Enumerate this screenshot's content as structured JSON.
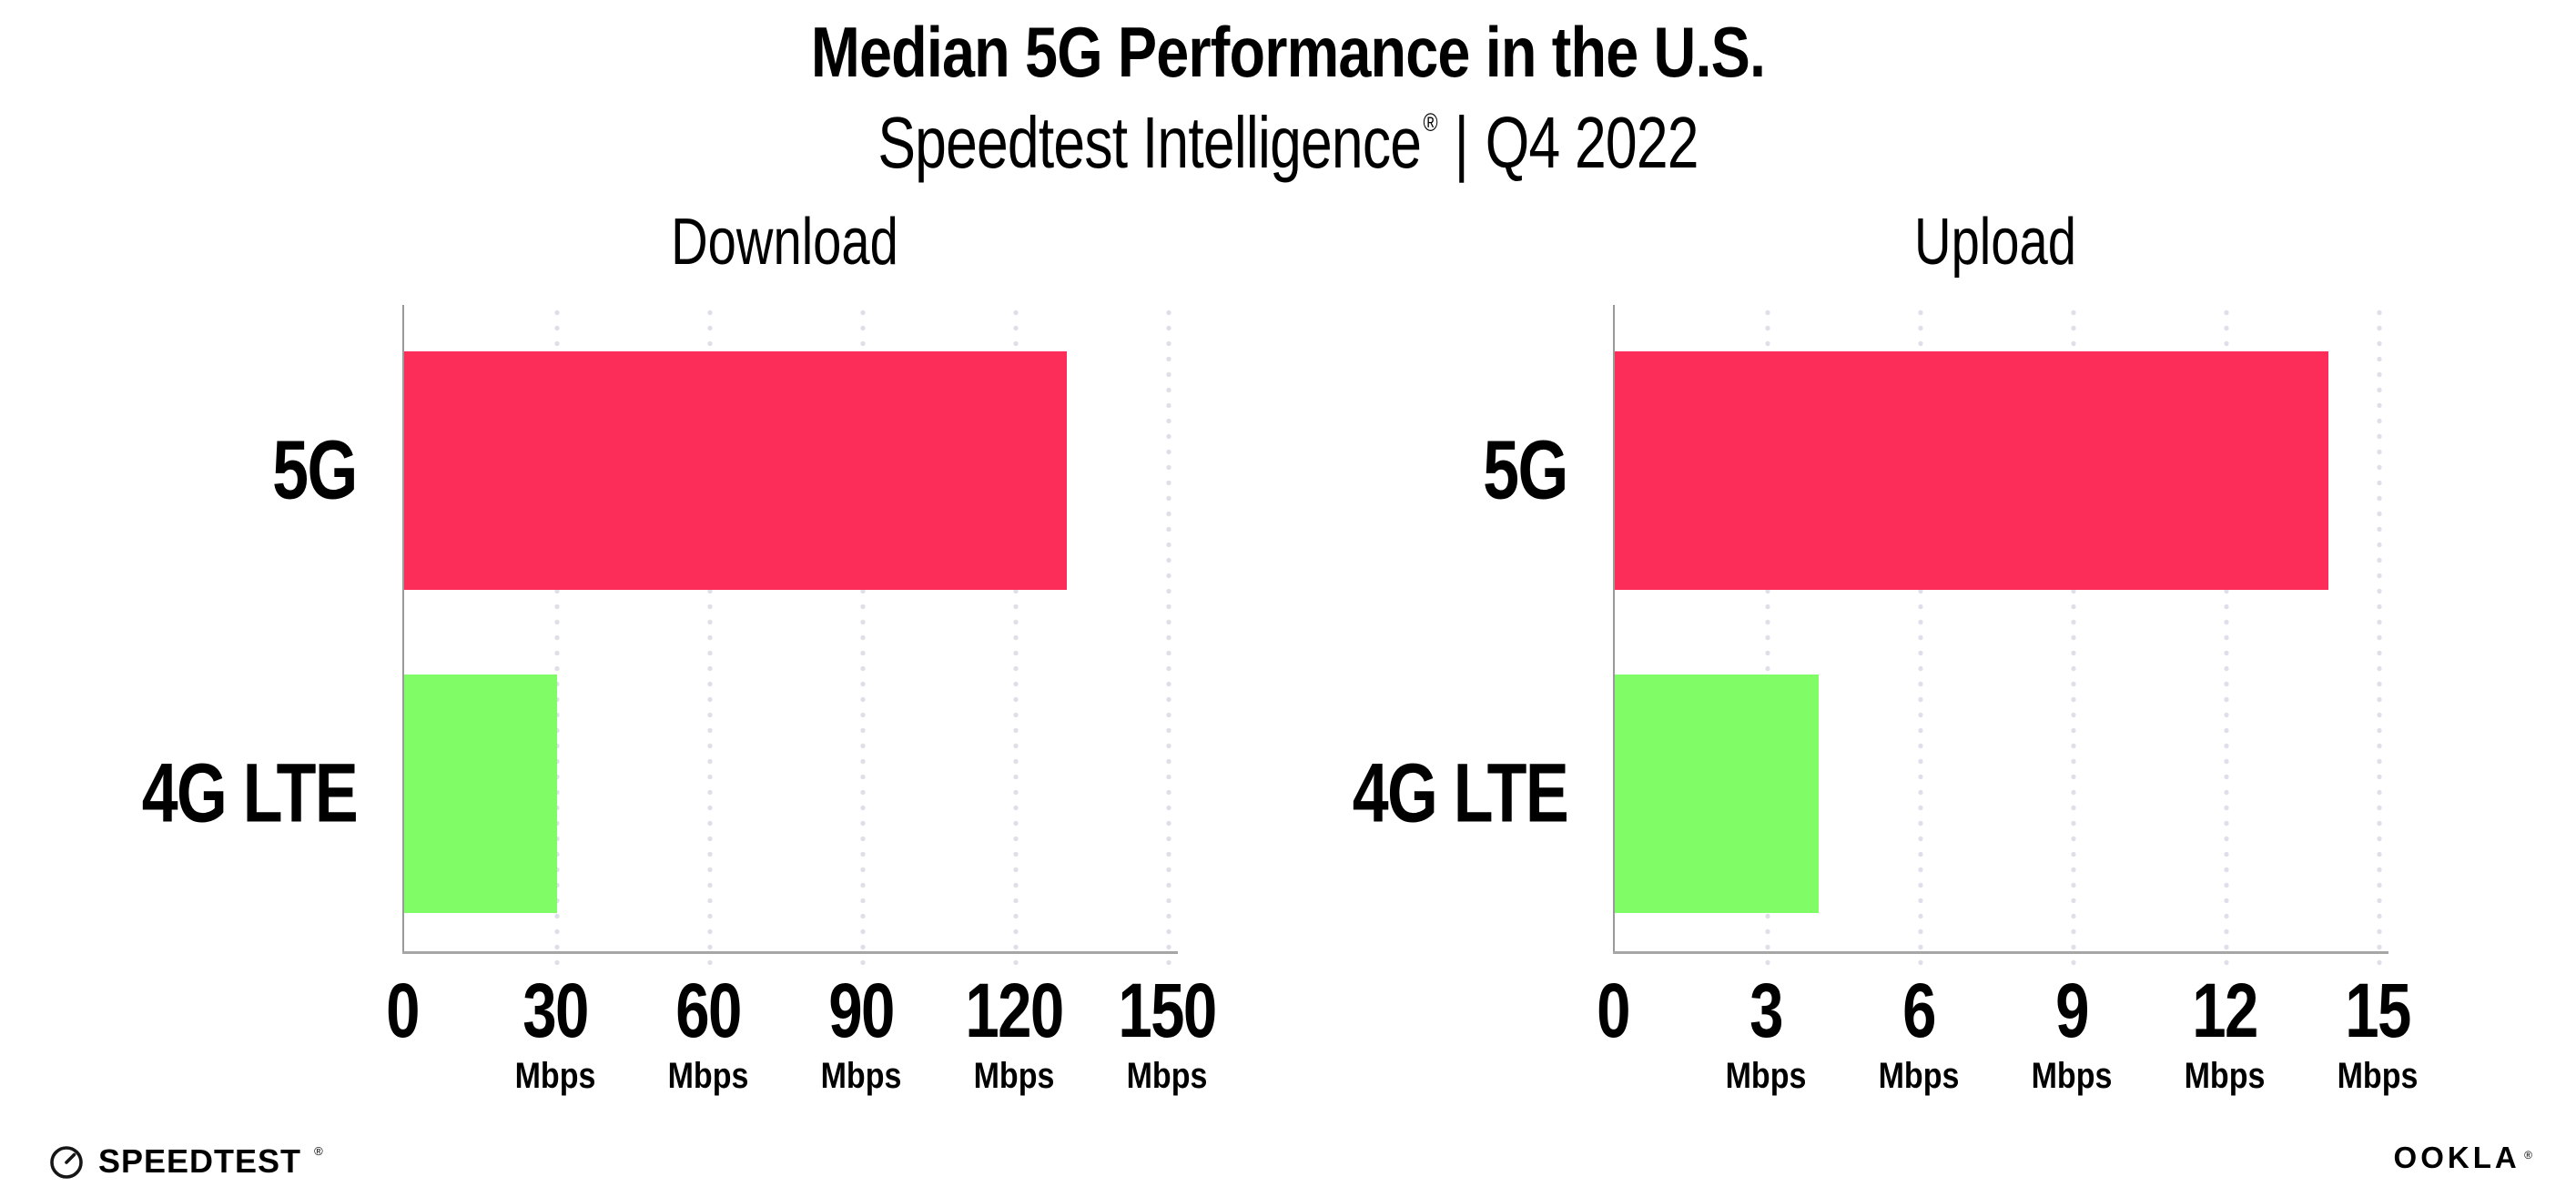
{
  "header": {
    "title": "Median 5G Performance in the U.S.",
    "subtitle_brand": "Speedtest Intelligence",
    "subtitle_reg": "®",
    "subtitle_separator": "|",
    "subtitle_period": "Q4 2022"
  },
  "chart_data": [
    {
      "type": "bar",
      "orientation": "horizontal",
      "title": "Download",
      "categories": [
        "5G",
        "4G LTE"
      ],
      "values": [
        130,
        30
      ],
      "unit": "Mbps",
      "xlabel": "",
      "ylabel": "",
      "xlim": [
        0,
        150
      ],
      "xticks": [
        0,
        30,
        60,
        90,
        120,
        150
      ],
      "bar_colors": [
        "#FD2D5A",
        "#80FC66"
      ],
      "grid": "vertical-dotted",
      "legend_position": "none"
    },
    {
      "type": "bar",
      "orientation": "horizontal",
      "title": "Upload",
      "categories": [
        "5G",
        "4G LTE"
      ],
      "values": [
        14,
        4
      ],
      "unit": "Mbps",
      "xlabel": "",
      "ylabel": "",
      "xlim": [
        0,
        15
      ],
      "xticks": [
        0,
        3,
        6,
        9,
        12,
        15
      ],
      "bar_colors": [
        "#FD2D5A",
        "#80FC66"
      ],
      "grid": "vertical-dotted",
      "legend_position": "none"
    }
  ],
  "footer": {
    "speedtest_label": "SPEEDTEST",
    "speedtest_mark": "®",
    "ookla_label": "OOKLA",
    "ookla_mark": "®"
  },
  "colors": {
    "bar_5g": "#FD2D5A",
    "bar_4g_lte": "#80FC66",
    "gridline": "#DFDFEA",
    "axis_line": "#A6A6A6",
    "axis_spine": "#999999",
    "text": "#000000",
    "background": "#FFFFFF"
  }
}
